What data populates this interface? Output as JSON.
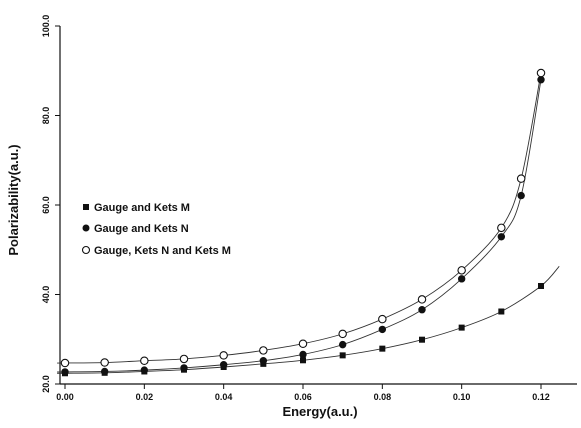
{
  "chart_data": {
    "type": "scatter",
    "xlabel": "Energy(a.u.)",
    "ylabel": "Polarizability(a.u.)",
    "xlim": [
      -0.002,
      0.125
    ],
    "ylim": [
      18,
      100
    ],
    "grid": false,
    "legend_position": "center-left",
    "x_tick_labels": [
      "0.00",
      "0.02",
      "0.04",
      "0.06",
      "0.08",
      "0.10",
      "0.12"
    ],
    "x_ticks": [
      0.0,
      0.02,
      0.04,
      0.06,
      0.08,
      0.1,
      0.12
    ],
    "y_tick_labels": [
      "20.0",
      "40.0",
      "60.0",
      "80.0",
      "100.0"
    ],
    "y_ticks": [
      20,
      40,
      60,
      80,
      100
    ],
    "x": [
      0.0,
      0.01,
      0.02,
      0.03,
      0.04,
      0.05,
      0.06,
      0.07,
      0.08,
      0.09,
      0.1,
      0.11,
      0.115,
      0.12
    ],
    "series": [
      {
        "name": "Gauge and Kets M",
        "marker": "filled-square",
        "x": [
          0.0,
          0.01,
          0.02,
          0.03,
          0.04,
          0.05,
          0.06,
          0.07,
          0.08,
          0.09,
          0.1,
          0.11,
          0.12
        ],
        "values": [
          22.4,
          22.5,
          22.8,
          23.2,
          23.8,
          24.5,
          25.3,
          26.4,
          27.9,
          29.9,
          32.6,
          36.2,
          41.9
        ],
        "color": "#111111"
      },
      {
        "name": "Gauge and Kets N",
        "marker": "filled-circle",
        "values": [
          22.7,
          22.8,
          23.1,
          23.6,
          24.3,
          25.2,
          26.6,
          28.8,
          32.2,
          36.6,
          43.5,
          52.9,
          62.1,
          88.0
        ],
        "color": "#111111"
      },
      {
        "name": "Gauge, Kets N and Kets M",
        "marker": "open-circle",
        "values": [
          24.7,
          24.8,
          25.2,
          25.6,
          26.4,
          27.5,
          29.0,
          31.2,
          34.5,
          38.9,
          45.4,
          54.9,
          65.9,
          89.5
        ],
        "color": "#111111"
      }
    ]
  }
}
